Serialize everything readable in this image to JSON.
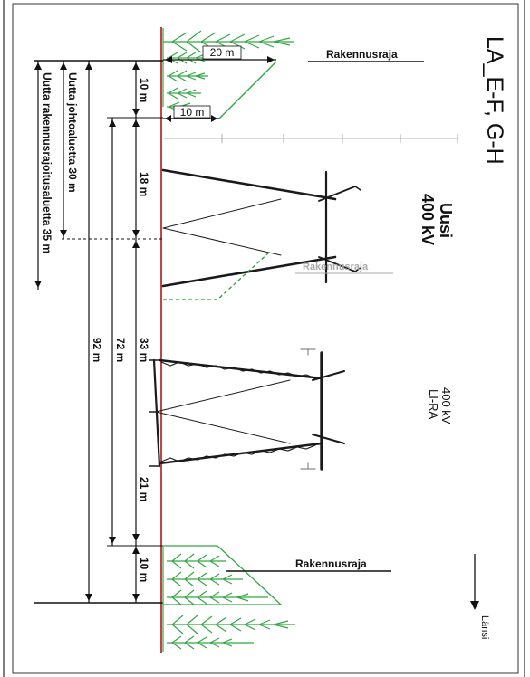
{
  "title": "LA_E-F, G-H",
  "new_line": {
    "label_line1": "Uusi",
    "label_line2": "400 kV"
  },
  "existing_line": {
    "label_line1": "400 kV",
    "label_line2": "LI-RA"
  },
  "building_limit_label": "Rakennusraja",
  "direction_label": "Länsi",
  "dimensions": {
    "top_tree_width": "20 m",
    "top_offset": "10 m",
    "top_offset_small": "10 m",
    "new_line_half": "18 m",
    "center_span": "33 m",
    "existing_right": "21 m",
    "bottom_offset": "10 m",
    "total_72": "72 m",
    "total_92": "92 m"
  },
  "vertical_labels": {
    "johtoalue": "Uutta johtoaluetta 30 m",
    "rakennusrajoitus": "Uutta rakennusrajoitusaluetta 35 m"
  },
  "colors": {
    "ground_line": "#b01818",
    "tree_green": "#33a845",
    "dashed_green": "#2e9a3a",
    "tower": "#1a1a1a",
    "background": "#ffffff"
  }
}
